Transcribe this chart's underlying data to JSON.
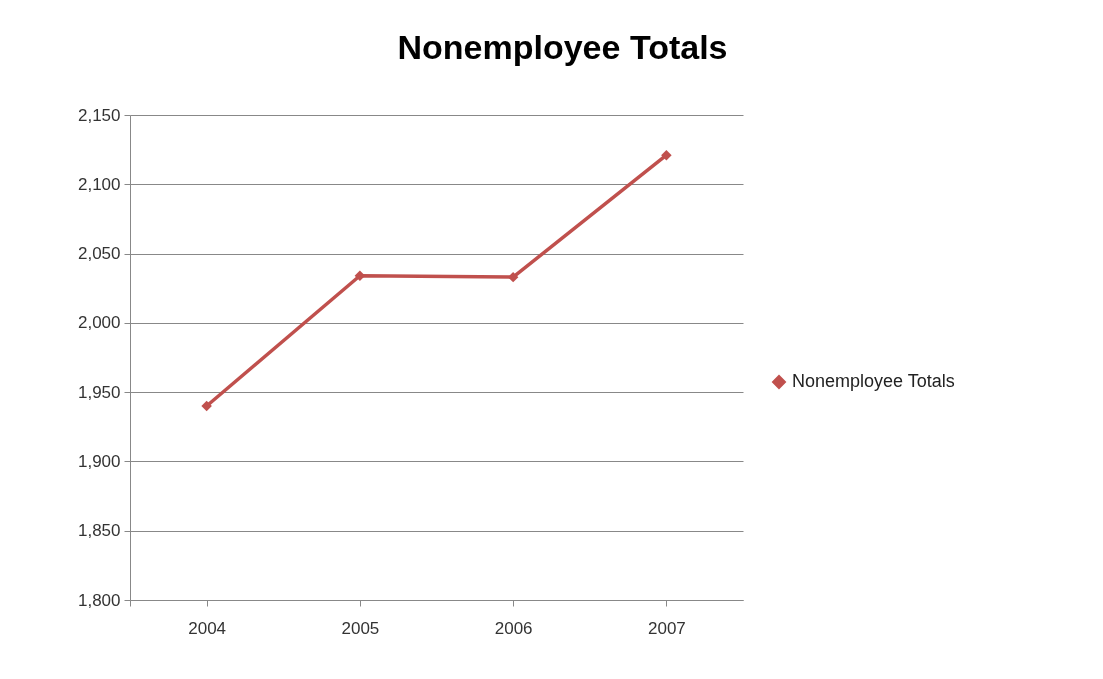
{
  "chart_data": {
    "type": "line",
    "title": "Nonemployee Totals",
    "categories": [
      "2004",
      "2005",
      "2006",
      "2007"
    ],
    "series": [
      {
        "name": "Nonemployee Totals",
        "color": "#c0504d",
        "values": [
          1940,
          2034,
          2033,
          2121
        ]
      }
    ],
    "ylim": [
      1800,
      2150
    ],
    "yticks": [
      {
        "value": 1800,
        "label": "1,800"
      },
      {
        "value": 1850,
        "label": "1,850"
      },
      {
        "value": 1900,
        "label": "1,900"
      },
      {
        "value": 1950,
        "label": "1,950"
      },
      {
        "value": 2000,
        "label": "2,000"
      },
      {
        "value": 2050,
        "label": "2,050"
      },
      {
        "value": 2100,
        "label": "2,100"
      },
      {
        "value": 2150,
        "label": "2,150"
      }
    ],
    "grid": "y",
    "legend": "right",
    "marker": "diamond"
  }
}
